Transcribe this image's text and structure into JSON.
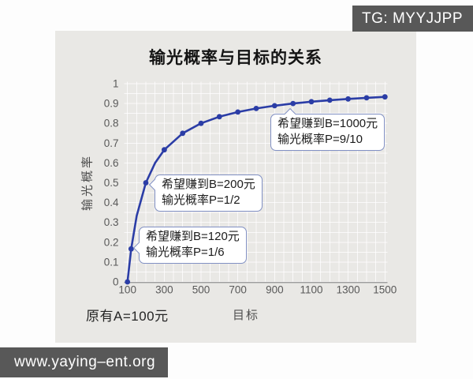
{
  "watermarks": {
    "telegram": "TG: MYYJJPP",
    "website": "www.yaying–ent.org"
  },
  "chart_data": {
    "type": "line",
    "title": "输光概率与目标的关系",
    "xlabel": "目标",
    "ylabel": "输光概率",
    "note": "原有A=100元",
    "xlim": [
      100,
      1500
    ],
    "ylim": [
      0,
      1
    ],
    "x_ticks": [
      100,
      300,
      500,
      700,
      900,
      1100,
      1300,
      1500
    ],
    "y_ticks": [
      0,
      0.1,
      0.2,
      0.3,
      0.4,
      0.5,
      0.6,
      0.7,
      0.8,
      0.9,
      1
    ],
    "grid": "on",
    "line_color": "#2b3da6",
    "panel_color": "#e9e8e5",
    "badge_color": "#585858",
    "callout_border_color": "#8190c3",
    "points": [
      {
        "x": 100,
        "y": 0,
        "marker": true
      },
      {
        "x": 120,
        "y": 0.1667,
        "marker": true
      },
      {
        "x": 150,
        "y": 0.3333,
        "marker": false
      },
      {
        "x": 200,
        "y": 0.5,
        "marker": true
      },
      {
        "x": 250,
        "y": 0.6,
        "marker": false
      },
      {
        "x": 300,
        "y": 0.6667,
        "marker": true
      },
      {
        "x": 400,
        "y": 0.75,
        "marker": true
      },
      {
        "x": 500,
        "y": 0.8,
        "marker": true
      },
      {
        "x": 600,
        "y": 0.8333,
        "marker": true
      },
      {
        "x": 700,
        "y": 0.8571,
        "marker": true
      },
      {
        "x": 800,
        "y": 0.875,
        "marker": true
      },
      {
        "x": 900,
        "y": 0.8889,
        "marker": true
      },
      {
        "x": 1000,
        "y": 0.9,
        "marker": true
      },
      {
        "x": 1100,
        "y": 0.9091,
        "marker": true
      },
      {
        "x": 1200,
        "y": 0.9167,
        "marker": true
      },
      {
        "x": 1300,
        "y": 0.9231,
        "marker": true
      },
      {
        "x": 1400,
        "y": 0.9286,
        "marker": true
      },
      {
        "x": 1500,
        "y": 0.9333,
        "marker": true
      }
    ],
    "annotations": [
      {
        "lines": [
          "希望赚到B=1000元",
          "输光概率P=9/10"
        ],
        "target": {
          "x": 1000,
          "y": 0.9
        }
      },
      {
        "lines": [
          "希望赚到B=200元",
          "输光概率P=1/2"
        ],
        "target": {
          "x": 200,
          "y": 0.5
        }
      },
      {
        "lines": [
          "希望赚到B=120元",
          "输光概率P=1/6"
        ],
        "target": {
          "x": 120,
          "y": 0.1667
        }
      }
    ]
  }
}
